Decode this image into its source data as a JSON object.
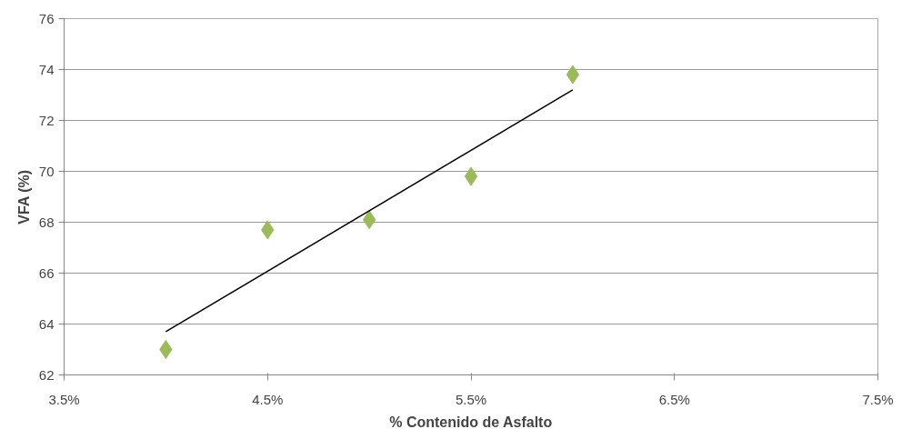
{
  "chart_data": {
    "type": "scatter",
    "xlabel": "% Contenido de Asfalto",
    "ylabel": "VFA (%)",
    "xlim": [
      3.5,
      7.5
    ],
    "xticks": [
      {
        "value": 3.5,
        "label": "3.5%"
      },
      {
        "value": 4.5,
        "label": "4.5%"
      },
      {
        "value": 5.5,
        "label": "5.5%"
      },
      {
        "value": 6.5,
        "label": "6.5%"
      },
      {
        "value": 7.5,
        "label": "7.5%"
      }
    ],
    "ylim": [
      62,
      76
    ],
    "yticks": [
      62,
      64,
      66,
      68,
      70,
      72,
      74,
      76
    ],
    "grid": "y",
    "series": [
      {
        "marker": "diamond",
        "color": "#9bbb59",
        "x": [
          4.0,
          4.5,
          5.0,
          5.5,
          6.0
        ],
        "values": [
          63.0,
          67.7,
          68.1,
          69.8,
          73.8
        ]
      },
      {
        "type": "line",
        "marker": "none",
        "line_style": "solid",
        "color": "#000000",
        "x": [
          4.0,
          6.0
        ],
        "values": [
          63.7,
          73.2
        ]
      }
    ]
  }
}
